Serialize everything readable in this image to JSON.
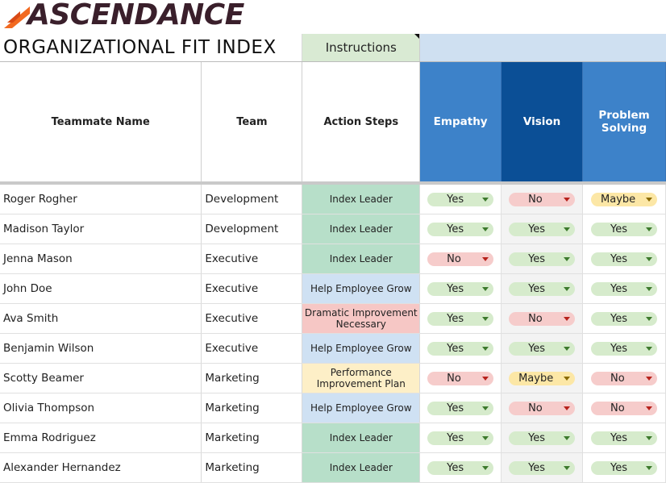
{
  "brand": {
    "name": "ASCENDANCE"
  },
  "sheet": {
    "title": "ORGANIZATIONAL FIT INDEX",
    "instructions_label": "Instructions",
    "headers": {
      "name": "Teammate Name",
      "team": "Team",
      "action": "Action Steps",
      "empathy": "Empathy",
      "vision": "Vision",
      "problem_solving": "Problem Solving"
    },
    "colors": {
      "empathy_header": "#3d82c9",
      "vision_header": "#0b4f96",
      "problem_header": "#3d82c9",
      "band": "#cfe0f1",
      "action_index_leader": "#b7dfc9",
      "action_help_grow": "#cfe1f3",
      "action_dramatic": "#f6c7c5",
      "action_pip": "#fdefc7",
      "chip_yes": "#d6ebcc",
      "chip_no": "#f6cccb",
      "chip_maybe": "#fce7a6"
    },
    "rows": [
      {
        "name": "Roger Rogher",
        "team": "Development",
        "action": "Index Leader",
        "action_type": "index_leader",
        "empathy": "Yes",
        "vision": "No",
        "problem": "Maybe"
      },
      {
        "name": "Madison Taylor",
        "team": "Development",
        "action": "Index Leader",
        "action_type": "index_leader",
        "empathy": "Yes",
        "vision": "Yes",
        "problem": "Yes"
      },
      {
        "name": "Jenna Mason",
        "team": "Executive",
        "action": "Index Leader",
        "action_type": "index_leader",
        "empathy": "No",
        "vision": "Yes",
        "problem": "Yes"
      },
      {
        "name": "John Doe",
        "team": "Executive",
        "action": "Help Employee Grow",
        "action_type": "help_grow",
        "empathy": "Yes",
        "vision": "Yes",
        "problem": "Yes"
      },
      {
        "name": "Ava Smith",
        "team": "Executive",
        "action": "Dramatic Improvement Necessary",
        "action_type": "dramatic",
        "empathy": "Yes",
        "vision": "No",
        "problem": "Yes"
      },
      {
        "name": "Benjamin Wilson",
        "team": "Executive",
        "action": "Help Employee Grow",
        "action_type": "help_grow",
        "empathy": "Yes",
        "vision": "Yes",
        "problem": "Yes"
      },
      {
        "name": "Scotty Beamer",
        "team": "Marketing",
        "action": "Performance Improvement Plan",
        "action_type": "pip",
        "empathy": "No",
        "vision": "Maybe",
        "problem": "No"
      },
      {
        "name": "Olivia Thompson",
        "team": "Marketing",
        "action": "Help Employee Grow",
        "action_type": "help_grow",
        "empathy": "Yes",
        "vision": "No",
        "problem": "No"
      },
      {
        "name": "Emma Rodriguez",
        "team": "Marketing",
        "action": "Index Leader",
        "action_type": "index_leader",
        "empathy": "Yes",
        "vision": "Yes",
        "problem": "Yes"
      },
      {
        "name": "Alexander Hernandez",
        "team": "Marketing",
        "action": "Index Leader",
        "action_type": "index_leader",
        "empathy": "Yes",
        "vision": "Yes",
        "problem": "Yes"
      }
    ]
  }
}
